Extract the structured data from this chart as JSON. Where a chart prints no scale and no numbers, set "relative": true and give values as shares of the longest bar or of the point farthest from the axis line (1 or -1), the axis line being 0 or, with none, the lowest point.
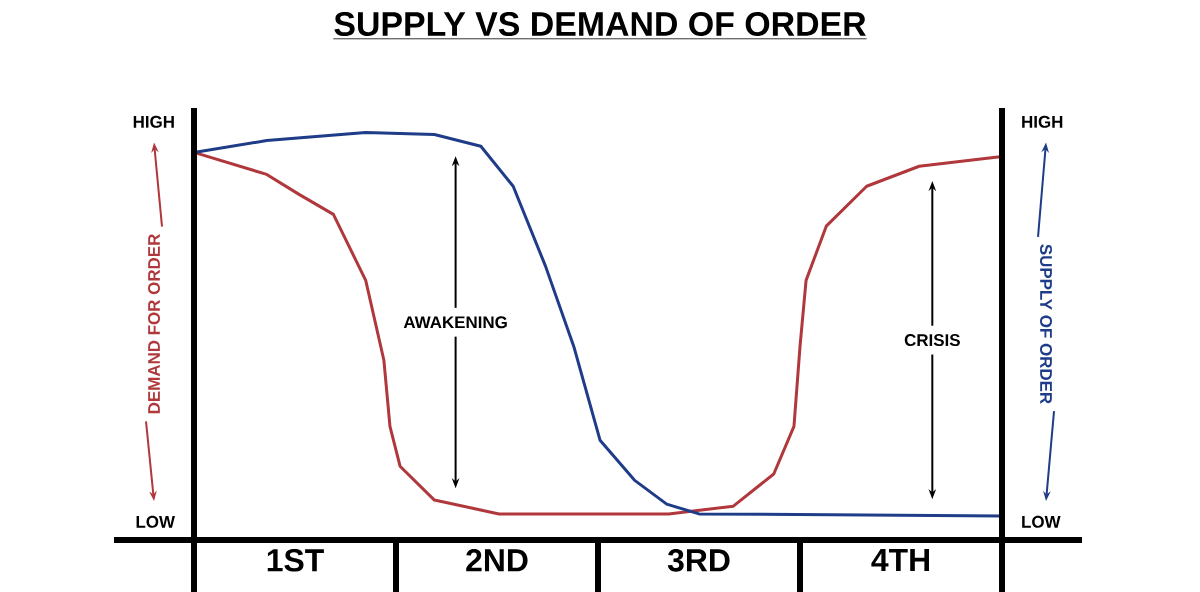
{
  "chart_data": {
    "type": "line",
    "title": "SUPPLY VS DEMAND OF ORDER",
    "ylabel": "DEMAND FOR ORDER",
    "y2label": "SUPPLY OF ORDER",
    "relative": true,
    "xlim": [
      0,
      4
    ],
    "xticks": [
      {
        "value": 0.5,
        "label": "1ST"
      },
      {
        "value": 1.5,
        "label": "2ND"
      },
      {
        "value": 2.5,
        "label": "3RD"
      },
      {
        "value": 3.5,
        "label": "4TH"
      }
    ],
    "series": [
      {
        "color": "#b0383c",
        "x": [
          0,
          0.36,
          0.52,
          0.69,
          0.85,
          0.94,
          0.97,
          1.02,
          1.19,
          1.51,
          2.35,
          2.67,
          2.87,
          2.97,
          3.0,
          3.03,
          3.13,
          3.33,
          3.59,
          4.0
        ],
        "values": [
          0.951,
          0.897,
          0.848,
          0.799,
          0.637,
          0.441,
          0.279,
          0.181,
          0.098,
          0.064,
          0.064,
          0.083,
          0.162,
          0.279,
          0.475,
          0.637,
          0.77,
          0.868,
          0.917,
          0.941
        ]
      },
      {
        "color": "#1f3c88",
        "x": [
          0,
          0.36,
          0.85,
          1.19,
          1.42,
          1.58,
          1.74,
          1.88,
          2.01,
          2.18,
          2.34,
          2.5,
          4.0
        ],
        "values": [
          0.951,
          0.98,
          1.0,
          0.995,
          0.966,
          0.868,
          0.672,
          0.475,
          0.245,
          0.147,
          0.088,
          0.064,
          0.059
        ]
      }
    ],
    "annotations": [
      "HIGH",
      "LOW",
      "HIGH",
      "LOW",
      "AWAKENING",
      "CRISIS"
    ]
  }
}
